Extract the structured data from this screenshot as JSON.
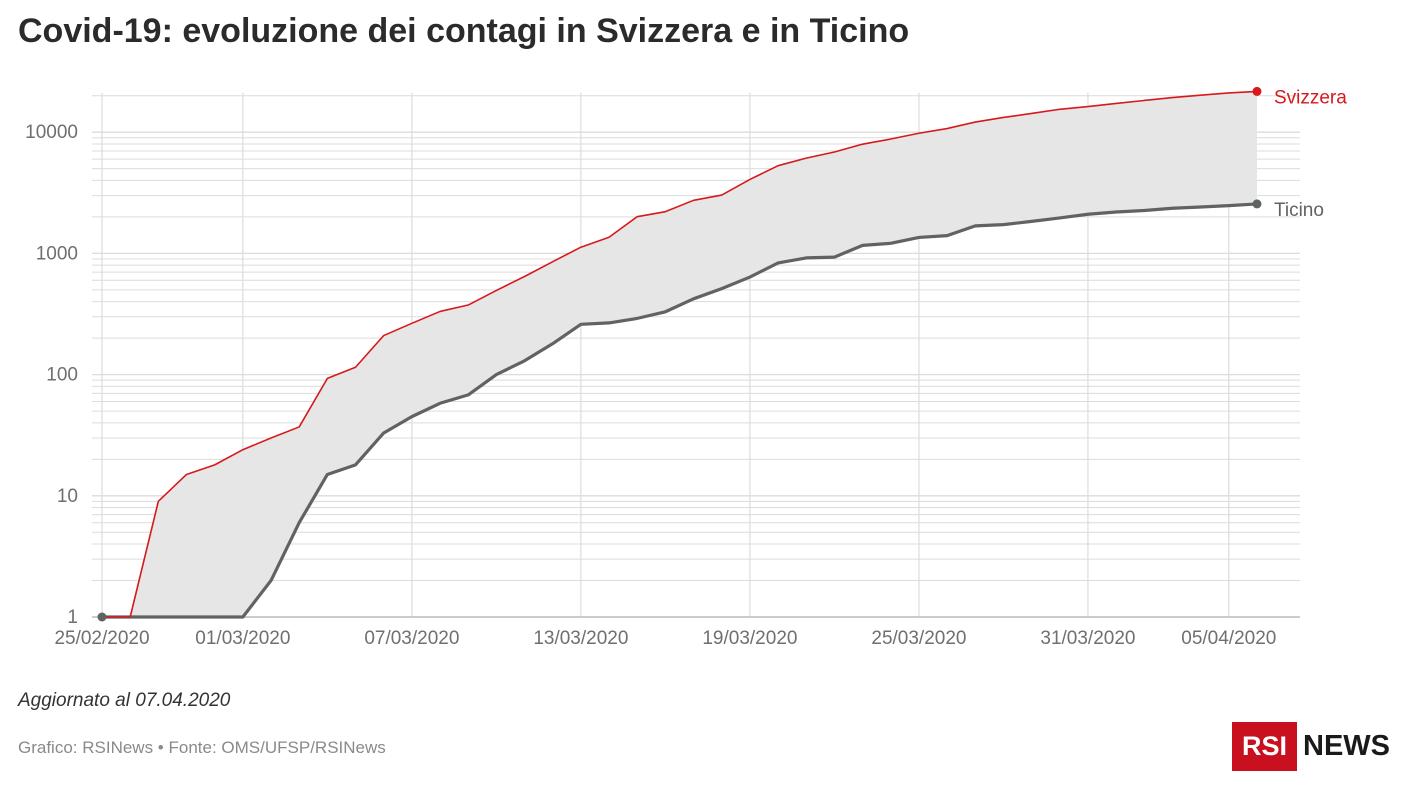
{
  "title": "Covid-19: evoluzione dei contagi in Svizzera e in Ticino",
  "note": "Aggiornato al 07.04.2020",
  "source": "Grafico: RSINews • Fonte: OMS/UFSP/RSINews",
  "logo": {
    "box": "RSI",
    "text": "NEWS"
  },
  "colors": {
    "svizzera": "#d7191c",
    "ticino": "#5f6362",
    "band": "#e6e6e6",
    "grid": "#dcdcdc"
  },
  "chart_data": {
    "type": "area",
    "y_scale": "log",
    "ylim": [
      1,
      22000
    ],
    "y_ticks": [
      1,
      10,
      100,
      1000,
      10000
    ],
    "y_tick_labels": [
      "1",
      "10",
      "100",
      "1000",
      "10000"
    ],
    "x_start": "25/02/2020",
    "x_end": "07/04/2020",
    "x_tick_labels": [
      "25/02/2020",
      "01/03/2020",
      "07/03/2020",
      "13/03/2020",
      "19/03/2020",
      "25/03/2020",
      "31/03/2020",
      "05/04/2020"
    ],
    "x_tick_days": [
      0,
      5,
      11,
      17,
      23,
      29,
      35,
      40
    ],
    "grid": true,
    "fill_between_series": true,
    "series": [
      {
        "name": "Svizzera",
        "values": [
          1,
          1,
          9,
          15,
          18,
          24,
          30,
          37,
          93,
          115,
          210,
          265,
          332,
          375,
          495,
          645,
          855,
          1125,
          1359,
          2010,
          2210,
          2742,
          3028,
          4075,
          5294,
          6113,
          6863,
          7967,
          8789,
          9801,
          10714,
          12123,
          13240,
          14280,
          15460,
          16280,
          17270,
          18270,
          19300,
          20200,
          21100,
          21700
        ]
      },
      {
        "name": "Ticino",
        "values": [
          1,
          1,
          1,
          1,
          1,
          1,
          2,
          6,
          15,
          18,
          33,
          45,
          58,
          68,
          100,
          130,
          180,
          260,
          267,
          291,
          330,
          422,
          512,
          638,
          834,
          918,
          932,
          1165,
          1211,
          1354,
          1401,
          1688,
          1727,
          1837,
          1962,
          2104,
          2195,
          2260,
          2357,
          2415,
          2480,
          2560
        ]
      }
    ]
  }
}
